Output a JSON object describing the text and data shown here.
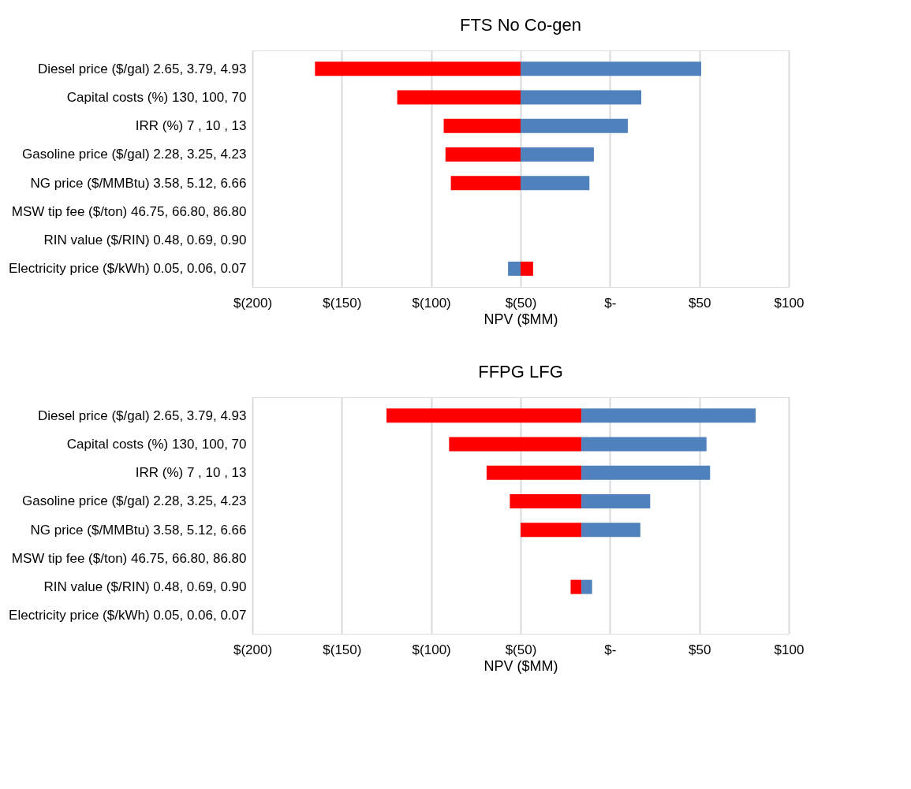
{
  "chart_data": [
    {
      "type": "bar",
      "orientation": "horizontal",
      "title": "FTS No Co-gen",
      "xlabel": "NPV ($MM)",
      "categories": [
        "Diesel price ($/gal) 2.65, 3.79, 4.93",
        "Capital costs (%) 130, 100, 70",
        "IRR (%) 7 , 10 , 13",
        "Gasoline price ($/gal) 2.28, 3.25, 4.23",
        "NG price ($/MMBtu) 3.58, 5.12, 6.66",
        "MSW tip fee ($/ton) 46.75, 66.80, 86.80",
        "RIN value ($/RIN) 0.48, 0.69, 0.90",
        "Electricity price ($/kWh) 0.05, 0.06, 0.07"
      ],
      "series": [
        {
          "color": "#ff0000",
          "base": [
            -50,
            -50,
            -50,
            -50,
            -50,
            null,
            null,
            -50
          ],
          "values": [
            -115,
            -69,
            -43,
            -42,
            -39,
            null,
            null,
            7
          ]
        },
        {
          "color": "#4f81bd",
          "base": [
            -50,
            -50,
            -50,
            -50,
            -50,
            null,
            null,
            -50
          ],
          "values": [
            101,
            67.5,
            60,
            41,
            38.5,
            null,
            null,
            -7
          ]
        }
      ],
      "xlim": [
        -200,
        100
      ],
      "xticks": [
        {
          "value": -200,
          "label": "$(200)"
        },
        {
          "value": -150,
          "label": "$(150)"
        },
        {
          "value": -100,
          "label": "$(100)"
        },
        {
          "value": -50,
          "label": "$(50)"
        },
        {
          "value": 0,
          "label": "$-"
        },
        {
          "value": 50,
          "label": "$50"
        },
        {
          "value": 100,
          "label": "$100"
        }
      ],
      "grid": "x"
    },
    {
      "type": "bar",
      "orientation": "horizontal",
      "title": "FFPG LFG",
      "xlabel": "NPV ($MM)",
      "categories": [
        "Diesel price ($/gal) 2.65, 3.79, 4.93",
        "Capital costs (%) 130, 100, 70",
        "IRR (%) 7 , 10 , 13",
        "Gasoline price ($/gal) 2.28, 3.25, 4.23",
        "NG price ($/MMBtu) 3.58, 5.12, 6.66",
        "MSW tip fee ($/ton) 46.75, 66.80, 86.80",
        "RIN value ($/RIN) 0.48, 0.69, 0.90",
        "Electricity price ($/kWh) 0.05, 0.06, 0.07"
      ],
      "series": [
        {
          "color": "#ff0000",
          "base": [
            -16,
            -16,
            -16,
            -16,
            -16,
            null,
            -16,
            null
          ],
          "values": [
            -109,
            -74,
            -53,
            -40,
            -34,
            null,
            -6,
            null
          ]
        },
        {
          "color": "#4f81bd",
          "base": [
            -16,
            -16,
            -16,
            -16,
            -16,
            null,
            -16,
            null
          ],
          "values": [
            97.5,
            70,
            72,
            38.5,
            33,
            null,
            6,
            null
          ]
        }
      ],
      "xlim": [
        -200,
        100
      ],
      "xticks": [
        {
          "value": -200,
          "label": "$(200)"
        },
        {
          "value": -150,
          "label": "$(150)"
        },
        {
          "value": -100,
          "label": "$(100)"
        },
        {
          "value": -50,
          "label": "$(50)"
        },
        {
          "value": 0,
          "label": "$-"
        },
        {
          "value": 50,
          "label": "$50"
        },
        {
          "value": 100,
          "label": "$100"
        }
      ],
      "grid": "x"
    }
  ]
}
